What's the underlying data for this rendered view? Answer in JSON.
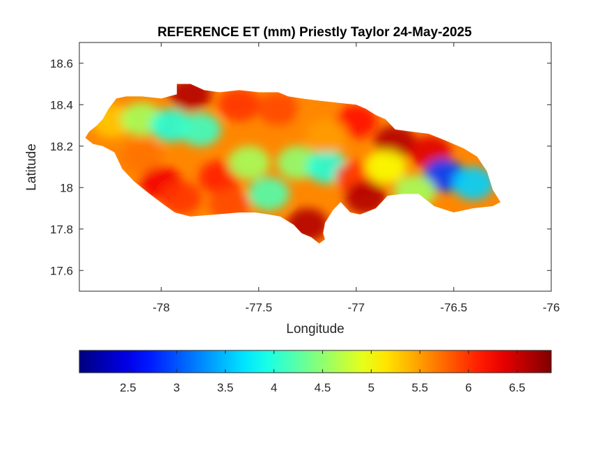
{
  "chart_data": {
    "type": "heatmap",
    "title": "REFERENCE ET (mm) Priestly Taylor 24-May-2025",
    "xlabel": "Longitude",
    "ylabel": "Latitude",
    "xlim": [
      -78.42,
      -76.0
    ],
    "ylim": [
      17.5,
      18.7
    ],
    "x_ticks": [
      -78,
      -77.5,
      -77,
      -76.5,
      -76
    ],
    "x_tick_labels": [
      "-78",
      "-77.5",
      "-77",
      "-76.5",
      "-76"
    ],
    "y_ticks": [
      17.6,
      17.8,
      18,
      18.2,
      18.4,
      18.6
    ],
    "y_tick_labels": [
      "17.6",
      "17.8",
      "18",
      "18.2",
      "18.4",
      "18.6"
    ],
    "grid": false,
    "colormap": "jet",
    "colorbar": {
      "orientation": "horizontal",
      "placement": "below",
      "clim": [
        2.0,
        6.85
      ],
      "ticks": [
        2.5,
        3,
        3.5,
        4,
        4.5,
        5,
        5.5,
        6,
        6.5
      ],
      "tick_labels": [
        "2.5",
        "3",
        "3.5",
        "4",
        "4.5",
        "5",
        "5.5",
        "6",
        "6.5"
      ]
    },
    "region_outline": [
      [
        -78.37,
        18.27
      ],
      [
        -78.33,
        18.3
      ],
      [
        -78.3,
        18.33
      ],
      [
        -78.27,
        18.38
      ],
      [
        -78.23,
        18.43
      ],
      [
        -78.18,
        18.44
      ],
      [
        -78.1,
        18.44
      ],
      [
        -78.0,
        18.43
      ],
      [
        -77.92,
        18.45
      ],
      [
        -77.92,
        18.5
      ],
      [
        -77.85,
        18.5
      ],
      [
        -77.78,
        18.47
      ],
      [
        -77.7,
        18.46
      ],
      [
        -77.6,
        18.47
      ],
      [
        -77.5,
        18.46
      ],
      [
        -77.4,
        18.46
      ],
      [
        -77.35,
        18.44
      ],
      [
        -77.28,
        18.43
      ],
      [
        -77.2,
        18.42
      ],
      [
        -77.1,
        18.41
      ],
      [
        -77.0,
        18.4
      ],
      [
        -76.95,
        18.38
      ],
      [
        -76.9,
        18.35
      ],
      [
        -76.85,
        18.33
      ],
      [
        -76.8,
        18.28
      ],
      [
        -76.72,
        18.27
      ],
      [
        -76.63,
        18.26
      ],
      [
        -76.55,
        18.23
      ],
      [
        -76.45,
        18.19
      ],
      [
        -76.38,
        18.15
      ],
      [
        -76.33,
        18.08
      ],
      [
        -76.3,
        17.99
      ],
      [
        -76.26,
        17.93
      ],
      [
        -76.3,
        17.91
      ],
      [
        -76.4,
        17.9
      ],
      [
        -76.5,
        17.88
      ],
      [
        -76.6,
        17.91
      ],
      [
        -76.68,
        17.97
      ],
      [
        -76.76,
        17.97
      ],
      [
        -76.84,
        17.96
      ],
      [
        -76.9,
        17.9
      ],
      [
        -76.98,
        17.87
      ],
      [
        -77.03,
        17.88
      ],
      [
        -77.08,
        17.93
      ],
      [
        -77.12,
        17.89
      ],
      [
        -77.16,
        17.83
      ],
      [
        -77.17,
        17.78
      ],
      [
        -77.16,
        17.75
      ],
      [
        -77.19,
        17.73
      ],
      [
        -77.23,
        17.76
      ],
      [
        -77.28,
        17.78
      ],
      [
        -77.32,
        17.82
      ],
      [
        -77.39,
        17.86
      ],
      [
        -77.45,
        17.87
      ],
      [
        -77.52,
        17.88
      ],
      [
        -77.6,
        17.88
      ],
      [
        -77.72,
        17.87
      ],
      [
        -77.85,
        17.86
      ],
      [
        -77.93,
        17.88
      ],
      [
        -77.99,
        17.92
      ],
      [
        -78.06,
        17.97
      ],
      [
        -78.14,
        18.03
      ],
      [
        -78.2,
        18.09
      ],
      [
        -78.24,
        18.17
      ],
      [
        -78.3,
        18.2
      ],
      [
        -78.35,
        18.21
      ],
      [
        -78.39,
        18.24
      ]
    ],
    "value_field_samples": [
      {
        "lon": -78.25,
        "lat": 18.32,
        "value": 5.3
      },
      {
        "lon": -78.1,
        "lat": 18.33,
        "value": 4.6
      },
      {
        "lon": -77.95,
        "lat": 18.3,
        "value": 4.0
      },
      {
        "lon": -77.8,
        "lat": 18.28,
        "value": 4.1
      },
      {
        "lon": -77.85,
        "lat": 18.45,
        "value": 6.6
      },
      {
        "lon": -77.6,
        "lat": 18.4,
        "value": 6.0
      },
      {
        "lon": -77.4,
        "lat": 18.38,
        "value": 5.9
      },
      {
        "lon": -77.2,
        "lat": 18.35,
        "value": 5.6
      },
      {
        "lon": -77.0,
        "lat": 18.32,
        "value": 6.2
      },
      {
        "lon": -76.8,
        "lat": 18.22,
        "value": 6.6
      },
      {
        "lon": -76.62,
        "lat": 18.17,
        "value": 6.4
      },
      {
        "lon": -76.55,
        "lat": 18.06,
        "value": 2.9
      },
      {
        "lon": -76.4,
        "lat": 18.02,
        "value": 3.6
      },
      {
        "lon": -76.7,
        "lat": 17.98,
        "value": 4.6
      },
      {
        "lon": -78.1,
        "lat": 18.15,
        "value": 5.7
      },
      {
        "lon": -78.0,
        "lat": 18.02,
        "value": 6.3
      },
      {
        "lon": -77.9,
        "lat": 17.95,
        "value": 6.0
      },
      {
        "lon": -77.7,
        "lat": 18.05,
        "value": 6.1
      },
      {
        "lon": -77.55,
        "lat": 18.12,
        "value": 4.6
      },
      {
        "lon": -77.45,
        "lat": 17.97,
        "value": 4.2
      },
      {
        "lon": -77.3,
        "lat": 18.12,
        "value": 4.5
      },
      {
        "lon": -77.15,
        "lat": 18.1,
        "value": 4.0
      },
      {
        "lon": -77.0,
        "lat": 18.05,
        "value": 6.0
      },
      {
        "lon": -76.95,
        "lat": 17.95,
        "value": 6.6
      },
      {
        "lon": -77.25,
        "lat": 17.82,
        "value": 6.6
      },
      {
        "lon": -77.65,
        "lat": 17.92,
        "value": 5.9
      },
      {
        "lon": -76.85,
        "lat": 18.1,
        "value": 5.0
      },
      {
        "lon": -77.15,
        "lat": 18.25,
        "value": 5.5
      }
    ]
  }
}
